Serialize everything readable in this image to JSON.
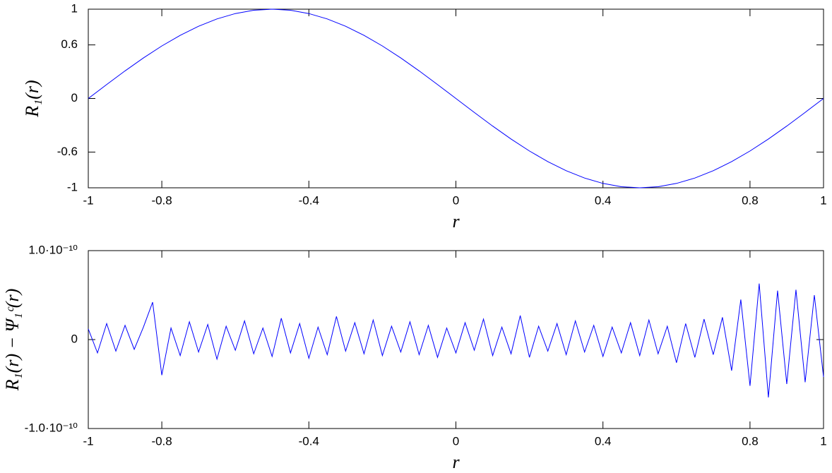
{
  "chart_data": [
    {
      "type": "line",
      "xlabel": "r",
      "ylabel": "R₁(r)",
      "x": [
        -1,
        -0.95,
        -0.9,
        -0.85,
        -0.8,
        -0.75,
        -0.7,
        -0.65,
        -0.6,
        -0.55,
        -0.5,
        -0.45,
        -0.4,
        -0.35,
        -0.3,
        -0.25,
        -0.2,
        -0.15,
        -0.1,
        -0.05,
        0,
        0.05,
        0.1,
        0.15,
        0.2,
        0.25,
        0.3,
        0.35,
        0.4,
        0.45,
        0.5,
        0.55,
        0.6,
        0.65,
        0.7,
        0.75,
        0.8,
        0.85,
        0.9,
        0.95,
        1
      ],
      "series": [
        {
          "color": "#0000ff",
          "values": [
            0,
            0.156,
            0.309,
            0.454,
            0.588,
            0.707,
            0.809,
            0.891,
            0.951,
            0.988,
            1,
            0.988,
            0.951,
            0.891,
            0.809,
            0.707,
            0.588,
            0.454,
            0.309,
            0.156,
            0,
            -0.156,
            -0.309,
            -0.454,
            -0.588,
            -0.707,
            -0.809,
            -0.891,
            -0.951,
            -0.988,
            -1,
            -0.988,
            -0.951,
            -0.891,
            -0.809,
            -0.707,
            -0.588,
            -0.454,
            -0.309,
            -0.156,
            0
          ]
        }
      ],
      "xlim": [
        -1,
        1
      ],
      "xticks": [
        -1,
        -0.8,
        -0.4,
        0,
        0.4,
        0.8,
        1
      ],
      "ylim": [
        -1,
        1
      ],
      "yticks": [
        -1,
        -0.6,
        0,
        0.6,
        1
      ]
    },
    {
      "type": "line",
      "xlabel": "r",
      "ylabel": "R₁(r) − Ψ₁ᶜ(r)",
      "x": [
        -1,
        -0.975,
        -0.95,
        -0.925,
        -0.9,
        -0.875,
        -0.85,
        -0.825,
        -0.8,
        -0.775,
        -0.75,
        -0.725,
        -0.7,
        -0.675,
        -0.65,
        -0.625,
        -0.6,
        -0.575,
        -0.55,
        -0.525,
        -0.5,
        -0.475,
        -0.45,
        -0.425,
        -0.4,
        -0.375,
        -0.35,
        -0.325,
        -0.3,
        -0.275,
        -0.25,
        -0.225,
        -0.2,
        -0.175,
        -0.15,
        -0.125,
        -0.1,
        -0.075,
        -0.05,
        -0.025,
        0,
        0.025,
        0.05,
        0.075,
        0.1,
        0.125,
        0.15,
        0.175,
        0.2,
        0.225,
        0.25,
        0.275,
        0.3,
        0.325,
        0.35,
        0.375,
        0.4,
        0.425,
        0.45,
        0.475,
        0.5,
        0.525,
        0.55,
        0.575,
        0.6,
        0.625,
        0.65,
        0.675,
        0.7,
        0.725,
        0.75,
        0.775,
        0.8,
        0.825,
        0.85,
        0.875,
        0.9,
        0.925,
        0.95,
        0.975,
        1
      ],
      "series": [
        {
          "color": "#0000ff",
          "values": [
            1.2e-11,
            -1.5e-11,
            1.8e-11,
            -1.3e-11,
            1.6e-11,
            -1.1e-11,
            1.4e-11,
            4.2e-11,
            -4e-11,
            1.3e-11,
            -1.8e-11,
            2e-11,
            -1.4e-11,
            1.7e-11,
            -2.2e-11,
            1.5e-11,
            -1.2e-11,
            2.1e-11,
            -1.6e-11,
            1.3e-11,
            -1.9e-11,
            2.4e-11,
            -1.5e-11,
            1.8e-11,
            -2.1e-11,
            1.4e-11,
            -1.7e-11,
            2.6e-11,
            -1.3e-11,
            1.9e-11,
            -1.6e-11,
            2.2e-11,
            -1.8e-11,
            1.5e-11,
            -1.4e-11,
            2e-11,
            -1.7e-11,
            1.6e-11,
            -2e-11,
            1.3e-11,
            -1.5e-11,
            1.9e-11,
            -1.2e-11,
            2.3e-11,
            -1.8e-11,
            1.4e-11,
            -1.6e-11,
            2.7e-11,
            -2e-11,
            1.5e-11,
            -1.3e-11,
            1.8e-11,
            -1.7e-11,
            2.1e-11,
            -1.4e-11,
            1.6e-11,
            -1.9e-11,
            1.4e-11,
            -1.5e-11,
            1.9e-11,
            -1.8e-11,
            2.2e-11,
            -1.6e-11,
            1.5e-11,
            -2.6e-11,
            1.8e-11,
            -2e-11,
            2.3e-11,
            -1.7e-11,
            2.5e-11,
            -3.5e-11,
            4.5e-11,
            -5.2e-11,
            6.3e-11,
            -6.5e-11,
            5.5e-11,
            -5e-11,
            5.6e-11,
            -4.8e-11,
            5e-11,
            -4.2e-11
          ]
        }
      ],
      "xlim": [
        -1,
        1
      ],
      "xticks": [
        -1,
        -0.8,
        -0.4,
        0,
        0.4,
        0.8,
        1
      ],
      "ylim": [
        -1e-10,
        1e-10
      ],
      "yticks": [
        {
          "value": -1e-10,
          "label": "-1.0·10⁻¹⁰"
        },
        0,
        {
          "value": 1e-10,
          "label": "1.0·10⁻¹⁰"
        }
      ]
    }
  ]
}
